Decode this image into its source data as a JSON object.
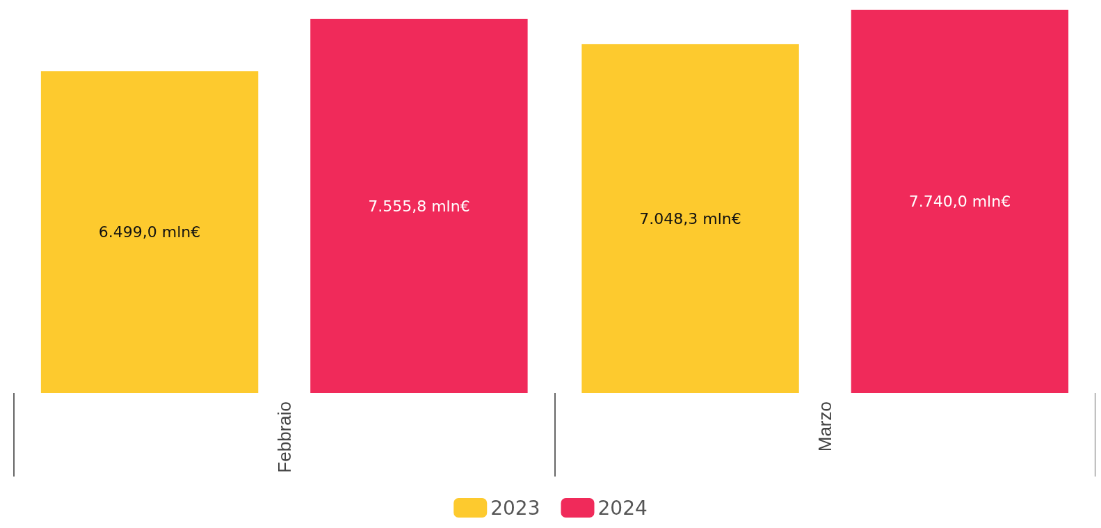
{
  "chart_data": {
    "type": "bar",
    "categories": [
      "Febbraio",
      "Marzo"
    ],
    "series": [
      {
        "name": "2023",
        "color": "#fdca2e",
        "values": [
          6499.0,
          7048.3
        ],
        "value_labels": [
          "6.499,0 mln€",
          "7.048,3 mln€"
        ]
      },
      {
        "name": "2024",
        "color": "#f02a5a",
        "values": [
          7555.8,
          7740.0
        ],
        "value_labels": [
          "7.555,8 mln€",
          "7.740,0 mln€"
        ]
      }
    ],
    "grid": false,
    "legend": "bottom"
  }
}
